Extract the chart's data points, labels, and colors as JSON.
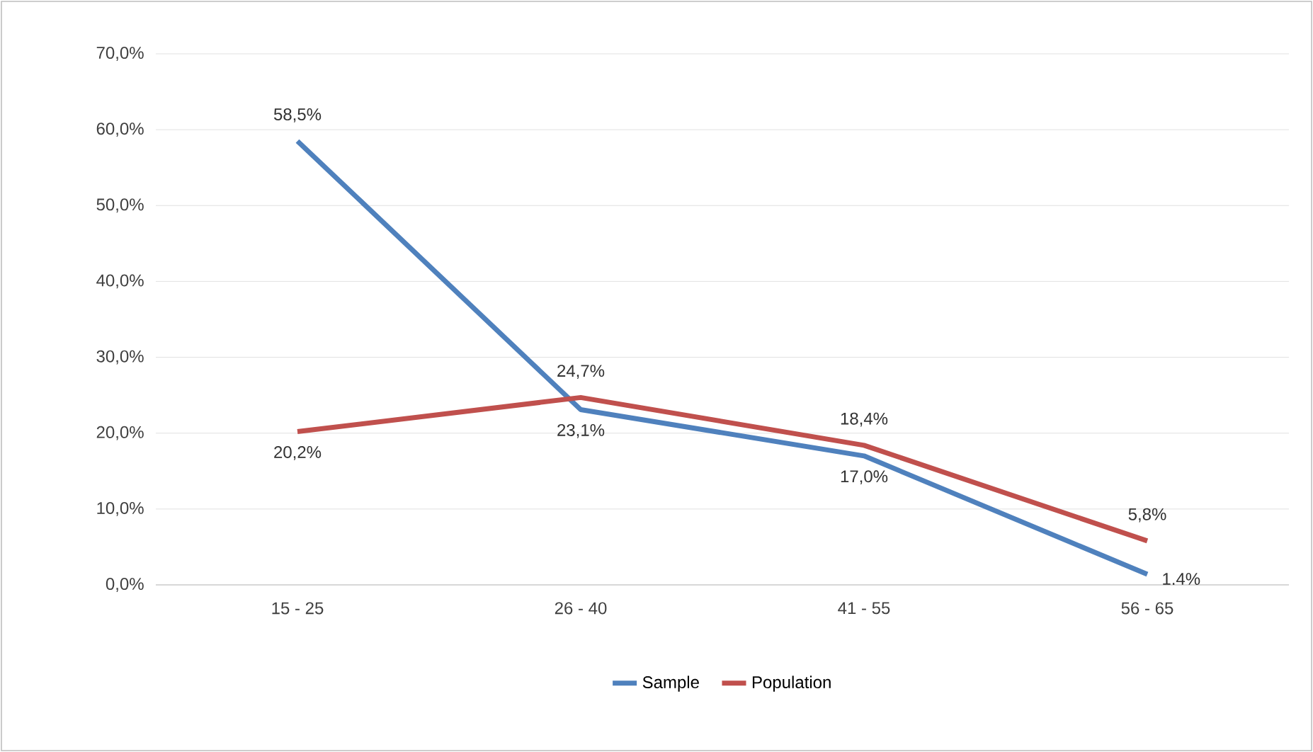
{
  "chart_data": {
    "type": "line",
    "categories": [
      "15 - 25",
      "26 - 40",
      "41 - 55",
      "56 - 65"
    ],
    "series": [
      {
        "name": "Sample",
        "color": "#4f81bd",
        "values": [
          58.5,
          23.1,
          17.0,
          1.4
        ],
        "value_labels": [
          "58,5%",
          "23,1%",
          "17,0%",
          "1,4%"
        ]
      },
      {
        "name": "Population",
        "color": "#c0504d",
        "values": [
          20.2,
          24.7,
          18.4,
          5.8
        ],
        "value_labels": [
          "20,2%",
          "24,7%",
          "18,4%",
          "5,8%"
        ]
      }
    ],
    "ylim": [
      0,
      70
    ],
    "yticks": [
      {
        "value": 0,
        "label": "0,0%"
      },
      {
        "value": 10,
        "label": "10,0%"
      },
      {
        "value": 20,
        "label": "20,0%"
      },
      {
        "value": 30,
        "label": "30,0%"
      },
      {
        "value": 40,
        "label": "40,0%"
      },
      {
        "value": 50,
        "label": "50,0%"
      },
      {
        "value": 60,
        "label": "60,0%"
      },
      {
        "value": 70,
        "label": "70,0%"
      }
    ],
    "grid": "y",
    "legend": "bottom",
    "marker": "none",
    "line_style": "solid"
  }
}
